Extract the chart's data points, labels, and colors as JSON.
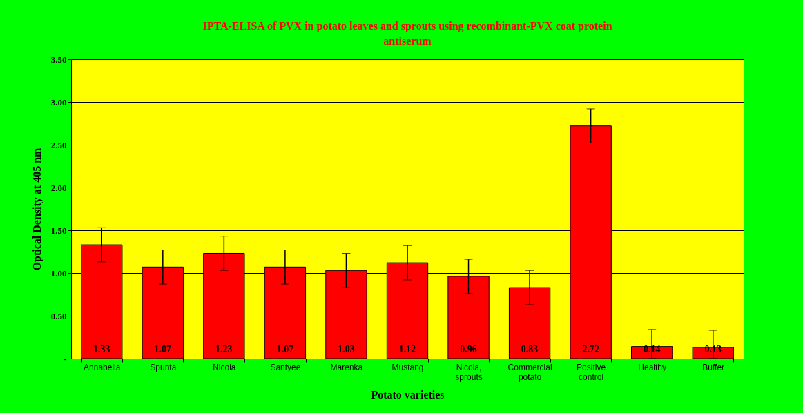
{
  "chart_data": {
    "type": "bar",
    "title": "IPTA-ELISA of PVX in potato leaves and sprouts using recombinant-PVX coat protein antiserum",
    "xlabel": "Potato varieties",
    "ylabel": "Optical Density at 405 nm",
    "categories": [
      "Annabella",
      "Spunta",
      "Nicola",
      "Santyee",
      "Marenka",
      "Mustang",
      "Nicola, sprouts",
      "Commercial potato",
      "Positive control",
      "Healthy",
      "Buffer"
    ],
    "values": [
      1.33,
      1.07,
      1.23,
      1.07,
      1.03,
      1.12,
      0.96,
      0.83,
      2.72,
      0.14,
      0.13
    ],
    "errors": [
      0.2,
      0.2,
      0.2,
      0.2,
      0.2,
      0.2,
      0.2,
      0.2,
      0.2,
      [
        0,
        0.34
      ],
      [
        0,
        0.33
      ]
    ],
    "color": "#ff0000",
    "ylim": [
      0,
      3.5
    ],
    "yticks": [
      {
        "value": 0,
        "label": "-"
      },
      {
        "value": 0.5,
        "label": "0.50"
      },
      {
        "value": 1,
        "label": "1.00"
      },
      {
        "value": 1.5,
        "label": "1.50"
      },
      {
        "value": 2,
        "label": "2.00"
      },
      {
        "value": 2.5,
        "label": "2.50"
      },
      {
        "value": 3,
        "label": "3.00"
      },
      {
        "value": 3.5,
        "label": "3.50"
      }
    ],
    "grid": "y",
    "data_labels": true
  }
}
